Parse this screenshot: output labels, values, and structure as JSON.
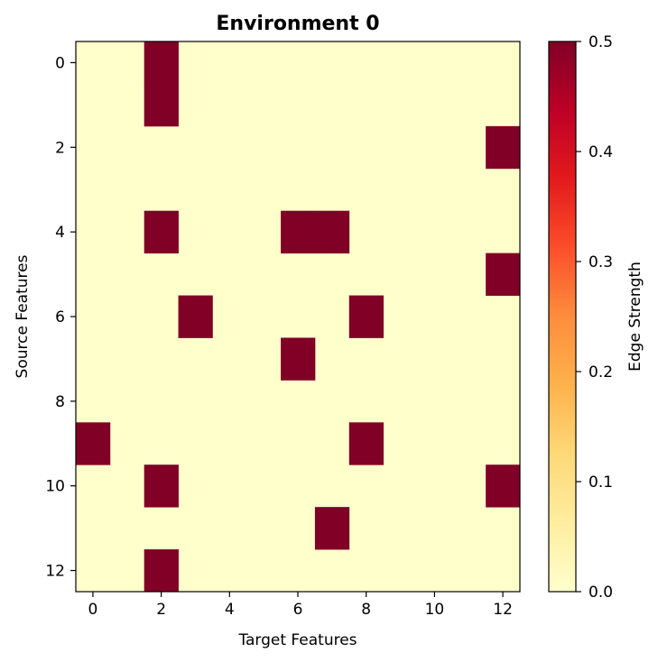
{
  "chart_data": {
    "type": "heatmap",
    "title": "Environment 0",
    "xlabel": "Target Features",
    "ylabel": "Source Features",
    "n_rows": 13,
    "n_cols": 13,
    "x_ticks": [
      0,
      2,
      4,
      6,
      8,
      10,
      12
    ],
    "y_ticks": [
      0,
      2,
      4,
      6,
      8,
      10,
      12
    ],
    "colorbar": {
      "label": "Edge Strength",
      "range": [
        0,
        0.5
      ],
      "ticks": [
        0.0,
        0.1,
        0.2,
        0.3,
        0.4,
        0.5
      ],
      "tick_labels": [
        "0.0",
        "0.1",
        "0.2",
        "0.3",
        "0.4",
        "0.5"
      ],
      "colormap": "YlOrRd"
    },
    "nonzero_cells": [
      {
        "source": 0,
        "target": 2,
        "value": 0.5
      },
      {
        "source": 1,
        "target": 2,
        "value": 0.5
      },
      {
        "source": 2,
        "target": 12,
        "value": 0.5
      },
      {
        "source": 4,
        "target": 2,
        "value": 0.5
      },
      {
        "source": 4,
        "target": 6,
        "value": 0.5
      },
      {
        "source": 4,
        "target": 7,
        "value": 0.5
      },
      {
        "source": 5,
        "target": 12,
        "value": 0.5
      },
      {
        "source": 6,
        "target": 3,
        "value": 0.5
      },
      {
        "source": 6,
        "target": 8,
        "value": 0.5
      },
      {
        "source": 7,
        "target": 6,
        "value": 0.5
      },
      {
        "source": 9,
        "target": 0,
        "value": 0.5
      },
      {
        "source": 9,
        "target": 8,
        "value": 0.5
      },
      {
        "source": 10,
        "target": 2,
        "value": 0.5
      },
      {
        "source": 10,
        "target": 12,
        "value": 0.5
      },
      {
        "source": 11,
        "target": 7,
        "value": 0.5
      },
      {
        "source": 12,
        "target": 2,
        "value": 0.5
      }
    ],
    "background_value": 0.0,
    "grid": false
  }
}
